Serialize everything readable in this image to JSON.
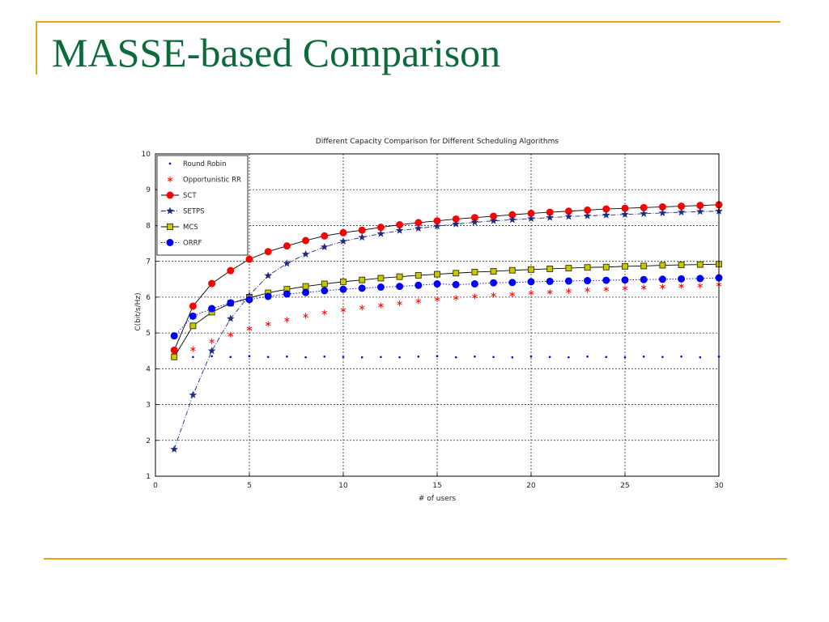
{
  "slide": {
    "title": "MASSE-based Comparison",
    "accent_color": "#e8a317",
    "title_color": "#0b6b3a"
  },
  "chart_data": {
    "type": "line",
    "title": "Different Capacity Comparison for Different Scheduling Algorithms",
    "xlabel": "# of users",
    "ylabel": "C(bit/s/Hz)",
    "xlim": [
      0,
      30
    ],
    "ylim": [
      1,
      10
    ],
    "xticks": [
      0,
      5,
      10,
      15,
      20,
      25,
      30
    ],
    "yticks": [
      1,
      2,
      3,
      4,
      5,
      6,
      7,
      8,
      9,
      10
    ],
    "grid": true,
    "legend_position": "top-left",
    "x": [
      1,
      2,
      3,
      4,
      5,
      6,
      7,
      8,
      9,
      10,
      11,
      12,
      13,
      14,
      15,
      16,
      17,
      18,
      19,
      20,
      21,
      22,
      23,
      24,
      25,
      26,
      27,
      28,
      29,
      30
    ],
    "series": [
      {
        "name": "Round Robin",
        "color": "#0000ff",
        "marker": "dot",
        "linestyle": "none",
        "values": [
          4.35,
          4.33,
          4.35,
          4.33,
          4.35,
          4.33,
          4.34,
          4.32,
          4.34,
          4.33,
          4.32,
          4.33,
          4.32,
          4.34,
          4.35,
          4.32,
          4.34,
          4.33,
          4.32,
          4.34,
          4.33,
          4.32,
          4.34,
          4.33,
          4.32,
          4.34,
          4.33,
          4.34,
          4.32,
          4.34
        ]
      },
      {
        "name": "Opportunistic RR",
        "color": "#ff0000",
        "marker": "asterisk",
        "linestyle": "none",
        "values": [
          4.45,
          4.55,
          4.77,
          4.95,
          5.12,
          5.25,
          5.37,
          5.48,
          5.57,
          5.64,
          5.71,
          5.77,
          5.83,
          5.89,
          5.94,
          5.98,
          6.02,
          6.06,
          6.08,
          6.12,
          6.14,
          6.17,
          6.2,
          6.22,
          6.25,
          6.27,
          6.29,
          6.31,
          6.32,
          6.35
        ]
      },
      {
        "name": "SCT",
        "color": "#ff0000",
        "marker": "circle",
        "linestyle": "solid",
        "values": [
          4.52,
          5.75,
          6.38,
          6.74,
          7.06,
          7.27,
          7.43,
          7.58,
          7.71,
          7.8,
          7.87,
          7.95,
          8.02,
          8.08,
          8.13,
          8.18,
          8.22,
          8.26,
          8.3,
          8.34,
          8.37,
          8.4,
          8.43,
          8.46,
          8.48,
          8.5,
          8.52,
          8.54,
          8.56,
          8.58
        ]
      },
      {
        "name": "SETPS",
        "color": "#1f2a80",
        "marker": "star",
        "linestyle": "dashdot",
        "values": [
          1.75,
          3.27,
          4.5,
          5.4,
          6.05,
          6.6,
          6.94,
          7.2,
          7.4,
          7.56,
          7.67,
          7.77,
          7.86,
          7.92,
          7.98,
          8.04,
          8.09,
          8.13,
          8.16,
          8.19,
          8.22,
          8.25,
          8.27,
          8.29,
          8.31,
          8.33,
          8.35,
          8.37,
          8.39,
          8.4
        ]
      },
      {
        "name": "MCS",
        "color": "#c8c800",
        "edge_color": "#333300",
        "marker": "square",
        "linestyle": "solid",
        "values": [
          4.33,
          5.2,
          5.58,
          5.83,
          5.98,
          6.12,
          6.22,
          6.3,
          6.37,
          6.43,
          6.48,
          6.53,
          6.57,
          6.61,
          6.64,
          6.67,
          6.7,
          6.72,
          6.75,
          6.77,
          6.79,
          6.81,
          6.83,
          6.84,
          6.86,
          6.87,
          6.89,
          6.9,
          6.91,
          6.92
        ]
      },
      {
        "name": "ORRF",
        "color": "#0000ff",
        "marker": "circle",
        "linestyle": "dotted",
        "values": [
          4.92,
          5.47,
          5.68,
          5.84,
          5.93,
          6.02,
          6.09,
          6.13,
          6.18,
          6.22,
          6.25,
          6.28,
          6.3,
          6.33,
          6.37,
          6.35,
          6.37,
          6.4,
          6.41,
          6.43,
          6.44,
          6.45,
          6.46,
          6.47,
          6.48,
          6.49,
          6.5,
          6.51,
          6.52,
          6.54
        ]
      }
    ]
  }
}
